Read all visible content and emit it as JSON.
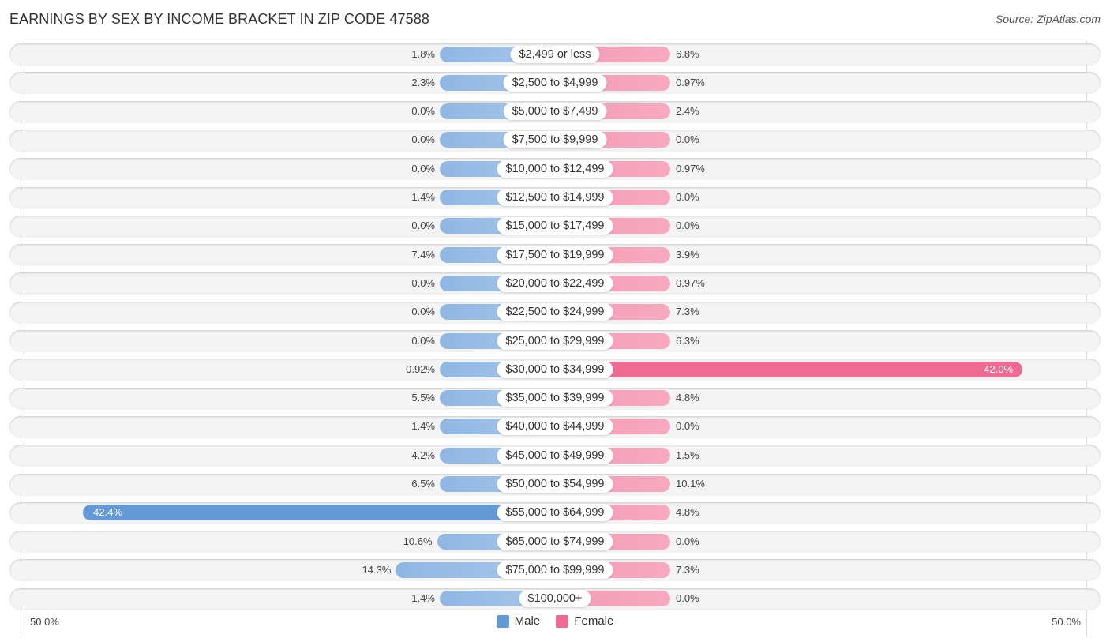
{
  "chart_data": {
    "type": "bar",
    "orientation": "horizontal-diverging",
    "title": "EARNINGS BY SEX BY INCOME BRACKET IN ZIP CODE 47588",
    "source": "Source: ZipAtlas.com",
    "axis_min_label": "50.0%",
    "axis_max_label": "50.0%",
    "xlim": [
      -50,
      50
    ],
    "unit": "%",
    "legend_position": "bottom-center",
    "categories": [
      "$2,499 or less",
      "$2,500 to $4,999",
      "$5,000 to $7,499",
      "$7,500 to $9,999",
      "$10,000 to $12,499",
      "$12,500 to $14,999",
      "$15,000 to $17,499",
      "$17,500 to $19,999",
      "$20,000 to $22,499",
      "$22,500 to $24,999",
      "$25,000 to $29,999",
      "$30,000 to $34,999",
      "$35,000 to $39,999",
      "$40,000 to $44,999",
      "$45,000 to $49,999",
      "$50,000 to $54,999",
      "$55,000 to $64,999",
      "$65,000 to $74,999",
      "$75,000 to $99,999",
      "$100,000+"
    ],
    "series": [
      {
        "name": "Male",
        "color": "#6499d8",
        "values": [
          1.8,
          2.3,
          0.0,
          0.0,
          0.0,
          1.4,
          0.0,
          7.4,
          0.0,
          0.0,
          0.0,
          0.92,
          5.5,
          1.4,
          4.2,
          6.5,
          42.4,
          10.6,
          14.3,
          1.4
        ],
        "labels": [
          "1.8%",
          "2.3%",
          "0.0%",
          "0.0%",
          "0.0%",
          "1.4%",
          "0.0%",
          "7.4%",
          "0.0%",
          "0.0%",
          "0.0%",
          "0.92%",
          "5.5%",
          "1.4%",
          "4.2%",
          "6.5%",
          "42.4%",
          "10.6%",
          "14.3%",
          "1.4%"
        ]
      },
      {
        "name": "Female",
        "color": "#f06b94",
        "values": [
          6.8,
          0.97,
          2.4,
          0.0,
          0.97,
          0.0,
          0.0,
          3.9,
          0.97,
          7.3,
          6.3,
          42.0,
          4.8,
          0.0,
          1.5,
          10.1,
          4.8,
          0.0,
          7.3,
          0.0
        ],
        "labels": [
          "6.8%",
          "0.97%",
          "2.4%",
          "0.0%",
          "0.97%",
          "0.0%",
          "0.0%",
          "3.9%",
          "0.97%",
          "7.3%",
          "6.3%",
          "42.0%",
          "4.8%",
          "0.0%",
          "1.5%",
          "10.1%",
          "4.8%",
          "0.0%",
          "7.3%",
          "0.0%"
        ]
      }
    ]
  }
}
